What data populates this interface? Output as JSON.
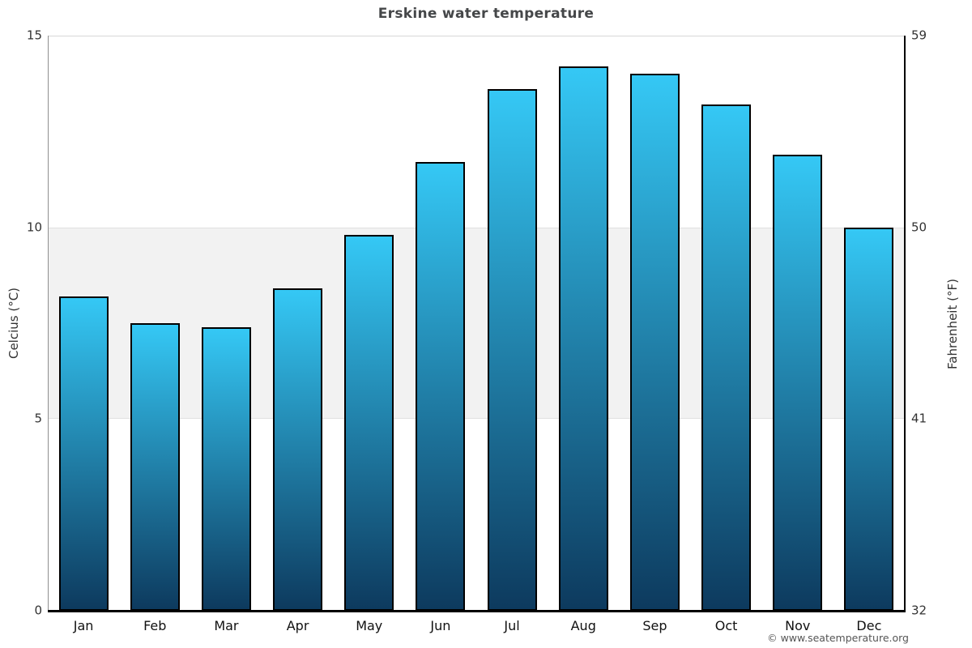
{
  "title": "Erskine water temperature",
  "footer_credit": "© www.seatemperature.org",
  "axes": {
    "left_title": "Celcius (°C)",
    "right_title": "Fahrenheit (°F)"
  },
  "colors": {
    "bar_gradient_top": "#35c8f5",
    "bar_gradient_bottom": "#0d3a5e",
    "bar_border": "#000000",
    "band_fill": "#f2f2f2",
    "title_text": "#454749",
    "tick_text": "#333333",
    "footer_text": "#555555"
  },
  "chart_data": {
    "type": "bar",
    "title": "Erskine water temperature",
    "categories": [
      "Jan",
      "Feb",
      "Mar",
      "Apr",
      "May",
      "Jun",
      "Jul",
      "Aug",
      "Sep",
      "Oct",
      "Nov",
      "Dec"
    ],
    "values": [
      8.2,
      7.5,
      7.4,
      8.4,
      9.8,
      11.7,
      13.6,
      14.2,
      14.0,
      13.2,
      11.9,
      10.0
    ],
    "xlabel": "",
    "ylabel": "Celcius (°C)",
    "ylabel_right": "Fahrenheit (°F)",
    "ylim": [
      0,
      15
    ],
    "yticks": [
      0,
      5,
      10,
      15
    ],
    "y2lim": [
      32,
      59
    ],
    "y2ticks": [
      32,
      41,
      50,
      59
    ],
    "shaded_band_y": [
      5,
      10
    ],
    "grid": "band-only",
    "legend": false,
    "bar_gradient": [
      "#35c8f5",
      "#0d3a5e"
    ]
  }
}
